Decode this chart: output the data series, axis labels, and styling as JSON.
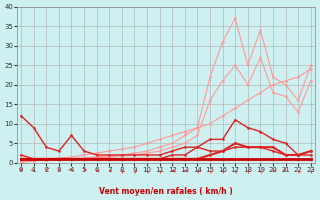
{
  "xlabel": "Vent moyen/en rafales ( km/h )",
  "background_color": "#cff0f0",
  "grid_color": "#aaaaaa",
  "x_ticks": [
    0,
    1,
    2,
    3,
    4,
    5,
    6,
    7,
    8,
    9,
    10,
    11,
    12,
    13,
    14,
    15,
    16,
    17,
    18,
    19,
    20,
    21,
    22,
    23
  ],
  "y_ticks": [
    0,
    5,
    10,
    15,
    20,
    25,
    30,
    35,
    40
  ],
  "xlim": [
    -0.3,
    23.3
  ],
  "ylim": [
    0,
    40
  ],
  "series": [
    {
      "color": "#ff9999",
      "linewidth": 0.8,
      "marker": "o",
      "markersize": 1.5,
      "data_x": [
        0,
        1,
        2,
        3,
        4,
        5,
        6,
        7,
        8,
        9,
        10,
        11,
        12,
        13,
        14,
        15,
        16,
        17,
        18,
        19,
        20,
        21,
        22,
        23
      ],
      "data_y": [
        0.5,
        0.7,
        1,
        1,
        1,
        1.2,
        1.5,
        1.8,
        2,
        2.5,
        3,
        4,
        5,
        7,
        9,
        22,
        31,
        37,
        25,
        34,
        22,
        20,
        16,
        25
      ]
    },
    {
      "color": "#ff9999",
      "linewidth": 0.8,
      "marker": "o",
      "markersize": 1.5,
      "data_x": [
        0,
        1,
        2,
        3,
        4,
        5,
        6,
        7,
        8,
        9,
        10,
        11,
        12,
        13,
        14,
        15,
        16,
        17,
        18,
        19,
        20,
        21,
        22,
        23
      ],
      "data_y": [
        0.5,
        0.5,
        0.7,
        0.8,
        1,
        1,
        1.2,
        1.5,
        1.8,
        2,
        2.5,
        3,
        4,
        5,
        7,
        16,
        21,
        25,
        20,
        27,
        18,
        17,
        13,
        21
      ]
    },
    {
      "color": "#ff9999",
      "linewidth": 0.8,
      "marker": "o",
      "markersize": 1.5,
      "data_x": [
        0,
        1,
        2,
        3,
        4,
        5,
        6,
        7,
        8,
        9,
        10,
        11,
        12,
        13,
        14,
        15,
        16,
        17,
        18,
        19,
        20,
        21,
        22,
        23
      ],
      "data_y": [
        0,
        0.5,
        1,
        1.2,
        1.5,
        2,
        2.5,
        3,
        3.5,
        4,
        5,
        6,
        7,
        8,
        9,
        10,
        12,
        14,
        16,
        18,
        20,
        21,
        22,
        24
      ]
    },
    {
      "color": "#dd2222",
      "linewidth": 1.0,
      "marker": "o",
      "markersize": 1.5,
      "data_x": [
        0,
        1,
        2,
        3,
        4,
        5,
        6,
        7,
        8,
        9,
        10,
        11,
        12,
        13,
        14,
        15,
        16,
        17,
        18,
        19,
        20,
        21,
        22,
        23
      ],
      "data_y": [
        12,
        9,
        4,
        3,
        7,
        3,
        2,
        2,
        2,
        2,
        2,
        2,
        3,
        4,
        4,
        3,
        3,
        4,
        4,
        4,
        3,
        2,
        2,
        2
      ]
    },
    {
      "color": "#dd2222",
      "linewidth": 1.0,
      "marker": "o",
      "markersize": 1.5,
      "data_x": [
        0,
        1,
        2,
        3,
        4,
        5,
        6,
        7,
        8,
        9,
        10,
        11,
        12,
        13,
        14,
        15,
        16,
        17,
        18,
        19,
        20,
        21,
        22,
        23
      ],
      "data_y": [
        2,
        1,
        1,
        1,
        1,
        1,
        1,
        1,
        1,
        1,
        1,
        1,
        2,
        2,
        4,
        6,
        6,
        11,
        9,
        8,
        6,
        5,
        2,
        3
      ]
    },
    {
      "color": "#dd2222",
      "linewidth": 1.5,
      "marker": "o",
      "markersize": 1.5,
      "data_x": [
        0,
        1,
        2,
        3,
        4,
        5,
        6,
        7,
        8,
        9,
        10,
        11,
        12,
        13,
        14,
        15,
        16,
        17,
        18,
        19,
        20,
        21,
        22,
        23
      ],
      "data_y": [
        1,
        1,
        1,
        1,
        1,
        1,
        1,
        1,
        1,
        1,
        1,
        1,
        1,
        1,
        1,
        2,
        3,
        5,
        4,
        4,
        4,
        2,
        2,
        3
      ]
    },
    {
      "color": "#cc0000",
      "linewidth": 2.0,
      "marker": "o",
      "markersize": 1.5,
      "data_x": [
        0,
        1,
        2,
        3,
        4,
        5,
        6,
        7,
        8,
        9,
        10,
        11,
        12,
        13,
        14,
        15,
        16,
        17,
        18,
        19,
        20,
        21,
        22,
        23
      ],
      "data_y": [
        1,
        1,
        1,
        1,
        1,
        1,
        1,
        1,
        1,
        1,
        1,
        1,
        1,
        1,
        1,
        1,
        1,
        1,
        1,
        1,
        1,
        1,
        1,
        1
      ]
    }
  ],
  "wind_arrows": {
    "color": "#cc3333",
    "positions": [
      0,
      1,
      2,
      3,
      4,
      5,
      6,
      7,
      8,
      9,
      10,
      11,
      12,
      13,
      14,
      15,
      16,
      17,
      18,
      19,
      20,
      21,
      22,
      23
    ],
    "angles_deg": [
      270,
      315,
      270,
      270,
      315,
      225,
      180,
      180,
      135,
      135,
      135,
      135,
      180,
      180,
      135,
      135,
      135,
      135,
      135,
      135,
      180,
      315,
      135,
      135
    ]
  }
}
